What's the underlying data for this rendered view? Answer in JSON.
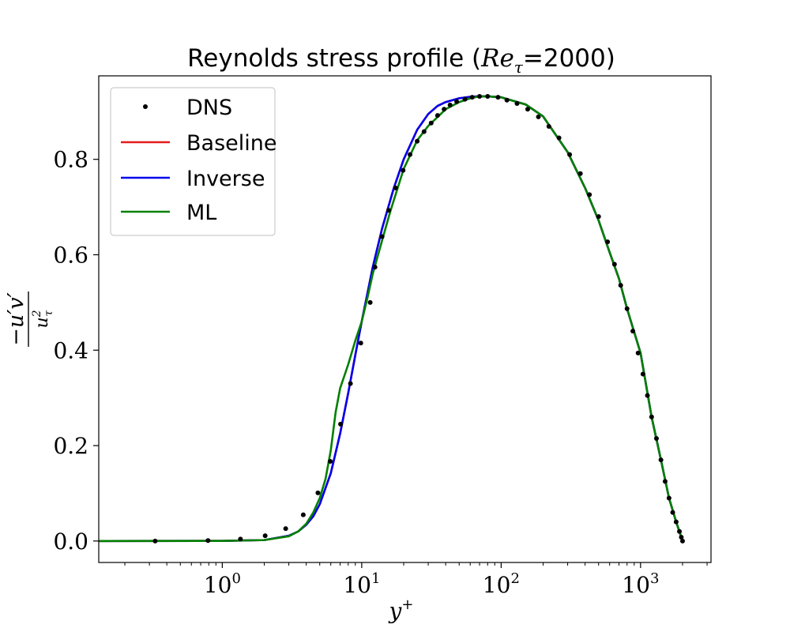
{
  "chart_data": {
    "type": "line",
    "title": {
      "pre": "Reynolds stress profile (",
      "symbol_base": "Re",
      "symbol_sub": "τ",
      "post": "=2000)"
    },
    "xlabel": {
      "base": "y",
      "sup": "+"
    },
    "ylabel": {
      "numerator": "−u′v′",
      "denominator_base": "u",
      "denominator_sup": "2",
      "denominator_sub": "τ"
    },
    "x_scale": "log",
    "xlim": [
      0.13,
      3200
    ],
    "ylim": [
      -0.045,
      0.975
    ],
    "x_ticks": [
      {
        "value": 1,
        "base": "10",
        "exp": "0"
      },
      {
        "value": 10,
        "base": "10",
        "exp": "1"
      },
      {
        "value": 100,
        "base": "10",
        "exp": "2"
      },
      {
        "value": 1000,
        "base": "10",
        "exp": "3"
      }
    ],
    "y_ticks": [
      {
        "value": 0.0,
        "label": "0.0"
      },
      {
        "value": 0.2,
        "label": "0.2"
      },
      {
        "value": 0.4,
        "label": "0.4"
      },
      {
        "value": 0.6,
        "label": "0.6"
      },
      {
        "value": 0.8,
        "label": "0.8"
      }
    ],
    "grid": false,
    "legend": {
      "position": "upper-left"
    },
    "series": [
      {
        "name": "DNS",
        "style": "markers",
        "color": "#000000",
        "x": [
          0.33,
          0.79,
          1.35,
          2.03,
          2.85,
          3.81,
          4.85,
          5.95,
          7.05,
          8.3,
          9.85,
          11.5,
          12.45,
          14.0,
          15.6,
          17.5,
          19.8,
          22.2,
          25.0,
          28.0,
          31.5,
          35.0,
          39.0,
          43.0,
          48.0,
          55.0,
          62.0,
          70.0,
          80.0,
          95.0,
          110.0,
          130.0,
          155.0,
          185.0,
          220.0,
          260.0,
          310.0,
          370.0,
          430.0,
          500.0,
          580.0,
          650.0,
          720.0,
          800.0,
          880.0,
          960.0,
          1040.0,
          1120.0,
          1200.0,
          1300.0,
          1400.0,
          1500.0,
          1600.0,
          1700.0,
          1800.0,
          1900.0,
          1960.0,
          2000.0
        ],
        "y": [
          0.0,
          0.001,
          0.004,
          0.011,
          0.026,
          0.055,
          0.101,
          0.167,
          0.245,
          0.33,
          0.415,
          0.5,
          0.574,
          0.638,
          0.693,
          0.74,
          0.777,
          0.81,
          0.838,
          0.858,
          0.876,
          0.892,
          0.905,
          0.914,
          0.921,
          0.926,
          0.93,
          0.932,
          0.932,
          0.93,
          0.924,
          0.917,
          0.905,
          0.889,
          0.869,
          0.845,
          0.81,
          0.77,
          0.726,
          0.68,
          0.627,
          0.58,
          0.536,
          0.487,
          0.44,
          0.394,
          0.35,
          0.305,
          0.26,
          0.215,
          0.17,
          0.125,
          0.09,
          0.06,
          0.04,
          0.02,
          0.008,
          0.0
        ]
      },
      {
        "name": "Baseline",
        "style": "line",
        "color": "#e41a1c",
        "x": [
          0.13,
          1.0,
          2.0,
          3.0,
          3.5,
          4.0,
          4.5,
          5.0,
          6.0,
          7.0,
          8.0,
          9.0,
          10.0,
          12.0,
          14.0,
          17.0,
          20.0,
          25.0,
          30.0,
          35.0,
          40.0,
          50.0,
          60.0,
          70.0,
          80.0,
          100.0,
          150.0,
          200.0,
          300.0,
          400.0,
          500.0,
          600.0,
          700.0,
          800.0,
          1000.0,
          1200.0,
          1400.0,
          1600.0,
          1800.0,
          1900.0,
          2000.0
        ],
        "y": [
          0.0,
          0.0002,
          0.002,
          0.011,
          0.02,
          0.034,
          0.052,
          0.077,
          0.142,
          0.225,
          0.31,
          0.39,
          0.46,
          0.574,
          0.655,
          0.74,
          0.8,
          0.862,
          0.895,
          0.912,
          0.92,
          0.928,
          0.931,
          0.932,
          0.932,
          0.93,
          0.915,
          0.89,
          0.815,
          0.74,
          0.672,
          0.605,
          0.55,
          0.487,
          0.394,
          0.26,
          0.17,
          0.09,
          0.04,
          0.02,
          0.0
        ]
      },
      {
        "name": "Inverse",
        "style": "line",
        "color": "#0000ee",
        "x": [
          0.13,
          1.0,
          2.0,
          3.0,
          3.5,
          4.0,
          4.5,
          5.0,
          6.0,
          7.0,
          8.0,
          9.0,
          10.0,
          12.0,
          14.0,
          17.0,
          20.0,
          25.0,
          30.0,
          35.0,
          40.0,
          50.0,
          60.0,
          70.0,
          80.0,
          100.0,
          150.0,
          200.0,
          300.0,
          400.0,
          500.0,
          600.0,
          700.0,
          800.0,
          1000.0,
          1200.0,
          1400.0,
          1600.0,
          1800.0,
          1900.0,
          2000.0
        ],
        "y": [
          0.0,
          0.0002,
          0.002,
          0.011,
          0.02,
          0.034,
          0.052,
          0.077,
          0.142,
          0.225,
          0.31,
          0.39,
          0.46,
          0.574,
          0.655,
          0.74,
          0.8,
          0.862,
          0.895,
          0.912,
          0.92,
          0.928,
          0.931,
          0.932,
          0.932,
          0.93,
          0.915,
          0.89,
          0.815,
          0.74,
          0.672,
          0.605,
          0.55,
          0.487,
          0.394,
          0.26,
          0.17,
          0.09,
          0.04,
          0.02,
          0.0
        ]
      },
      {
        "name": "ML",
        "style": "line",
        "color": "#008000",
        "x": [
          0.13,
          1.0,
          2.0,
          3.0,
          3.5,
          4.0,
          4.5,
          5.0,
          5.5,
          6.0,
          6.5,
          7.0,
          8.0,
          9.0,
          10.0,
          11.0,
          12.0,
          14.0,
          16.0,
          20.0,
          25.0,
          30.0,
          40.0,
          50.0,
          60.0,
          70.0,
          80.0,
          100.0,
          150.0,
          200.0,
          300.0,
          400.0,
          500.0,
          600.0,
          700.0,
          800.0,
          1000.0,
          1200.0,
          1400.0,
          1600.0,
          1800.0,
          1900.0,
          2000.0
        ],
        "y": [
          0.0,
          0.0002,
          0.002,
          0.01,
          0.02,
          0.036,
          0.06,
          0.09,
          0.13,
          0.19,
          0.27,
          0.32,
          0.37,
          0.42,
          0.46,
          0.51,
          0.56,
          0.63,
          0.69,
          0.78,
          0.84,
          0.87,
          0.905,
          0.92,
          0.928,
          0.932,
          0.932,
          0.93,
          0.915,
          0.89,
          0.815,
          0.74,
          0.672,
          0.605,
          0.55,
          0.487,
          0.394,
          0.26,
          0.17,
          0.09,
          0.04,
          0.02,
          0.0
        ]
      }
    ]
  }
}
